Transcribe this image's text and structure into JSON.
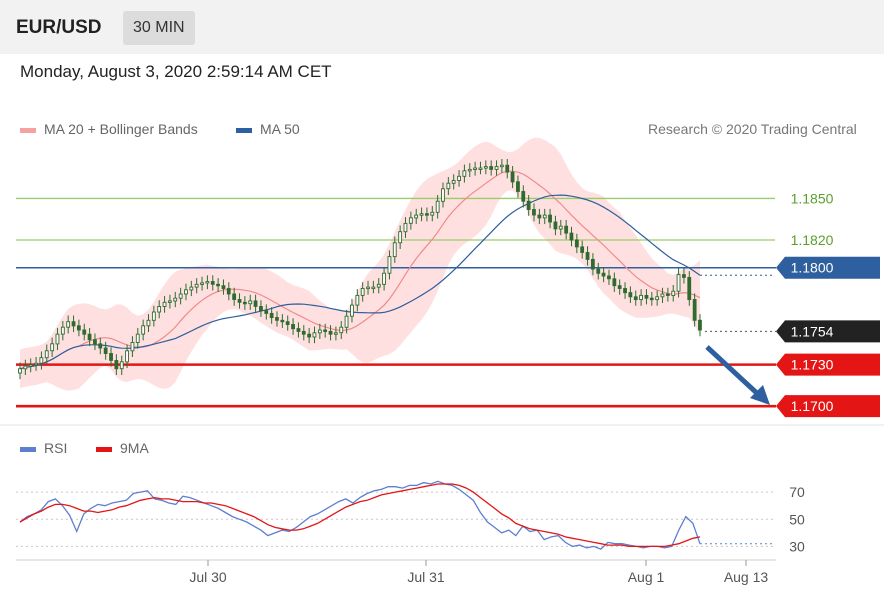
{
  "header": {
    "symbol": "EUR/USD",
    "interval": "30 MIN"
  },
  "datetime": "Monday, August 3, 2020 2:59:14 AM CET",
  "legend": {
    "ma20": "MA 20 + Bollinger Bands",
    "ma50": "MA 50",
    "credit": "Research © 2020 Trading Central"
  },
  "rsi_legend": {
    "rsi": "RSI",
    "ma9": "9MA"
  },
  "colors": {
    "ma20": "#f08a8a",
    "ma50": "#2e5f9e",
    "band": "#ffd6d6",
    "candle": "#2f6b2f",
    "support": "#e31515",
    "resistance_green": "#9ccc6a",
    "pivot_blue": "#2e5f9e",
    "current": "#222222",
    "rsi": "#5d7fd0",
    "rsi_ma": "#e31515",
    "arrow": "#2e5f9e"
  },
  "chart_data": [
    {
      "type": "candlestick",
      "panel": "price",
      "x_tick_labels": [
        "Jul 30",
        "Jul 31",
        "Aug 1",
        "Aug 13"
      ],
      "ylim": [
        1.169,
        1.1885
      ],
      "levels": [
        {
          "value": 1.185,
          "label": "1.1850",
          "style": "green-line"
        },
        {
          "value": 1.182,
          "label": "1.1820",
          "style": "green-line"
        },
        {
          "value": 1.18,
          "label": "1.1800",
          "style": "blue-tag"
        },
        {
          "value": 1.1754,
          "label": "1.1754",
          "style": "current-price"
        },
        {
          "value": 1.173,
          "label": "1.1730",
          "style": "red-tag"
        },
        {
          "value": 1.17,
          "label": "1.1700",
          "style": "red-tag"
        }
      ],
      "close": [
        1.1727,
        1.1729,
        1.173,
        1.1731,
        1.1735,
        1.174,
        1.1745,
        1.1752,
        1.1757,
        1.1761,
        1.1758,
        1.1755,
        1.1752,
        1.1748,
        1.1745,
        1.1742,
        1.1738,
        1.1733,
        1.1727,
        1.1732,
        1.174,
        1.1746,
        1.1752,
        1.1758,
        1.1762,
        1.1768,
        1.1772,
        1.1775,
        1.1776,
        1.1778,
        1.1781,
        1.1784,
        1.1786,
        1.1788,
        1.1789,
        1.179,
        1.1788,
        1.1787,
        1.1785,
        1.1781,
        1.1777,
        1.1775,
        1.1774,
        1.1776,
        1.1772,
        1.1769,
        1.1767,
        1.1764,
        1.1762,
        1.1761,
        1.1759,
        1.1756,
        1.1754,
        1.1752,
        1.175,
        1.1753,
        1.1755,
        1.1754,
        1.1752,
        1.1753,
        1.1757,
        1.1765,
        1.1773,
        1.178,
        1.1785,
        1.1786,
        1.1786,
        1.1788,
        1.1796,
        1.1808,
        1.1818,
        1.1826,
        1.1832,
        1.1836,
        1.1838,
        1.1839,
        1.1838,
        1.184,
        1.1848,
        1.1857,
        1.1861,
        1.1863,
        1.1866,
        1.187,
        1.1871,
        1.1872,
        1.1872,
        1.1873,
        1.1871,
        1.1873,
        1.1874,
        1.1869,
        1.1862,
        1.1855,
        1.1848,
        1.1842,
        1.1838,
        1.1836,
        1.1838,
        1.1833,
        1.1828,
        1.183,
        1.1825,
        1.182,
        1.1815,
        1.1811,
        1.1806,
        1.1799,
        1.1796,
        1.1794,
        1.1792,
        1.1787,
        1.1785,
        1.1782,
        1.1779,
        1.1777,
        1.178,
        1.1778,
        1.1777,
        1.1779,
        1.1781,
        1.178,
        1.1783,
        1.1795,
        1.1793,
        1.1777,
        1.1762,
        1.1755
      ]
    },
    {
      "type": "line",
      "panel": "rsi",
      "ylim": [
        20,
        90
      ],
      "y_tick_labels": [
        "70",
        "50",
        "30"
      ],
      "series": [
        {
          "name": "RSI",
          "values": [
            48,
            52,
            54,
            57,
            63,
            65,
            60,
            53,
            41,
            54,
            58,
            61,
            60,
            62,
            63,
            64,
            69,
            70,
            71,
            65,
            64,
            62,
            61,
            67,
            66,
            64,
            62,
            60,
            58,
            55,
            52,
            50,
            48,
            45,
            42,
            38,
            40,
            42,
            41,
            44,
            48,
            52,
            54,
            57,
            60,
            63,
            65,
            62,
            66,
            69,
            71,
            72,
            74,
            74,
            73,
            75,
            75,
            77,
            76,
            78,
            76,
            75,
            72,
            68,
            64,
            55,
            48,
            44,
            40,
            42,
            38,
            45,
            41,
            42,
            35,
            37,
            38,
            33,
            30,
            31,
            29,
            30,
            28,
            33,
            32,
            32,
            31,
            30,
            29,
            30,
            30,
            29,
            30,
            42,
            52,
            47,
            32
          ]
        },
        {
          "name": "9MA",
          "values": [
            48,
            51,
            54,
            56,
            59,
            61,
            61,
            60,
            58,
            56,
            56,
            55,
            56,
            57,
            59,
            60,
            62,
            64,
            65,
            66,
            65,
            65,
            64,
            63,
            63,
            63,
            62,
            62,
            61,
            60,
            58,
            56,
            54,
            52,
            49,
            46,
            44,
            43,
            42,
            42,
            43,
            45,
            47,
            50,
            53,
            56,
            59,
            61,
            63,
            64,
            66,
            68,
            69,
            70,
            71,
            72,
            73,
            74,
            75,
            76,
            76,
            76,
            75,
            73,
            70,
            66,
            62,
            58,
            54,
            51,
            47,
            45,
            43,
            42,
            41,
            40,
            39,
            37,
            36,
            35,
            34,
            33,
            32,
            31,
            31,
            31,
            30,
            30,
            30,
            30,
            30,
            30,
            31,
            32,
            34,
            36,
            37
          ]
        }
      ]
    }
  ]
}
